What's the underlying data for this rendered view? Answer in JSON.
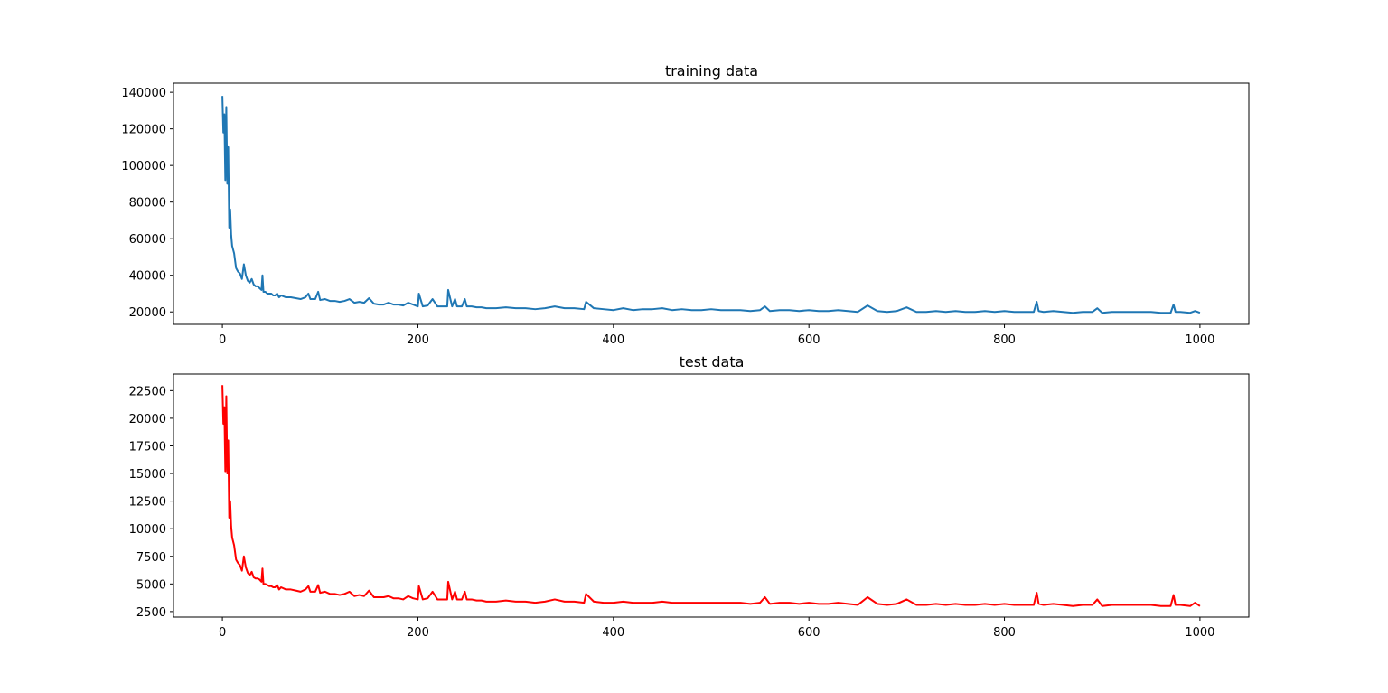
{
  "chart_data": [
    {
      "type": "line",
      "title": "training data",
      "xlabel": "",
      "ylabel": "",
      "xlim": [
        -50,
        1050
      ],
      "ylim": [
        13200,
        145000
      ],
      "xticks": [
        0,
        200,
        400,
        600,
        800,
        1000
      ],
      "yticks": [
        20000,
        40000,
        60000,
        80000,
        100000,
        120000,
        140000
      ],
      "grid": false,
      "color": "#1f77b4",
      "series": [
        {
          "x": [
            0,
            1,
            2,
            3,
            4,
            5,
            6,
            7,
            8,
            9,
            10,
            12,
            14,
            16,
            18,
            20,
            22,
            24,
            26,
            28,
            30,
            32,
            34,
            36,
            38,
            40,
            41,
            42,
            44,
            46,
            48,
            50,
            52,
            54,
            56,
            58,
            60,
            65,
            70,
            75,
            80,
            85,
            88,
            90,
            95,
            98,
            100,
            105,
            110,
            115,
            120,
            125,
            130,
            135,
            140,
            145,
            150,
            155,
            160,
            165,
            170,
            175,
            180,
            185,
            190,
            195,
            200,
            201,
            205,
            210,
            215,
            220,
            225,
            230,
            231,
            235,
            238,
            240,
            245,
            248,
            250,
            255,
            260,
            265,
            270,
            280,
            290,
            300,
            310,
            320,
            330,
            340,
            350,
            360,
            370,
            372,
            380,
            390,
            400,
            410,
            420,
            430,
            440,
            450,
            460,
            470,
            480,
            490,
            500,
            510,
            520,
            530,
            540,
            550,
            555,
            560,
            570,
            580,
            590,
            600,
            610,
            620,
            630,
            640,
            650,
            660,
            670,
            680,
            690,
            700,
            710,
            720,
            730,
            740,
            750,
            760,
            770,
            780,
            790,
            800,
            810,
            820,
            830,
            833,
            835,
            840,
            850,
            860,
            870,
            880,
            890,
            895,
            900,
            910,
            920,
            930,
            940,
            950,
            960,
            970,
            973,
            975,
            980,
            990,
            995,
            1000
          ],
          "values": [
            138000,
            118000,
            128000,
            92000,
            132000,
            90000,
            110000,
            66000,
            76000,
            62000,
            56000,
            52000,
            44000,
            42000,
            41000,
            38000,
            46000,
            40000,
            37000,
            36000,
            38000,
            35000,
            34000,
            34000,
            33000,
            32000,
            40000,
            31000,
            31000,
            30000,
            30000,
            30000,
            29000,
            29000,
            30000,
            28000,
            29000,
            28000,
            28000,
            27500,
            27000,
            28000,
            30000,
            27000,
            27000,
            31000,
            26500,
            27000,
            26000,
            26000,
            25500,
            26000,
            27000,
            25000,
            25500,
            25000,
            27500,
            24500,
            24000,
            24000,
            25000,
            24000,
            24000,
            23500,
            25000,
            24000,
            23000,
            30000,
            23000,
            23500,
            27000,
            23000,
            23000,
            23000,
            32000,
            23000,
            27000,
            23000,
            23000,
            27000,
            23000,
            23000,
            22500,
            22500,
            22000,
            22000,
            22500,
            22000,
            22000,
            21500,
            22000,
            23000,
            22000,
            22000,
            21500,
            25500,
            22000,
            21500,
            21000,
            22000,
            21000,
            21500,
            21500,
            22000,
            21000,
            21500,
            21000,
            21000,
            21500,
            21000,
            21000,
            21000,
            20500,
            21000,
            23000,
            20500,
            21000,
            21000,
            20500,
            21000,
            20500,
            20500,
            21000,
            20500,
            20000,
            23500,
            20500,
            20000,
            20500,
            22500,
            20000,
            20000,
            20500,
            20000,
            20500,
            20000,
            20000,
            20500,
            20000,
            20500,
            20000,
            20000,
            20000,
            25500,
            20500,
            20000,
            20500,
            20000,
            19500,
            20000,
            20000,
            22000,
            19500,
            20000,
            20000,
            20000,
            20000,
            20000,
            19500,
            19500,
            24000,
            20000,
            20000,
            19500,
            20500,
            19500
          ]
        }
      ]
    },
    {
      "type": "line",
      "title": "test data",
      "xlabel": "",
      "ylabel": "",
      "xlim": [
        -50,
        1050
      ],
      "ylim": [
        2000,
        24000
      ],
      "xticks": [
        0,
        200,
        400,
        600,
        800,
        1000
      ],
      "yticks": [
        2500,
        5000,
        7500,
        10000,
        12500,
        15000,
        17500,
        20000,
        22500
      ],
      "grid": false,
      "color": "#ff0000",
      "series": [
        {
          "x": [
            0,
            1,
            2,
            3,
            4,
            5,
            6,
            7,
            8,
            9,
            10,
            12,
            14,
            16,
            18,
            20,
            22,
            24,
            26,
            28,
            30,
            32,
            34,
            36,
            38,
            40,
            41,
            42,
            44,
            46,
            48,
            50,
            52,
            54,
            56,
            58,
            60,
            65,
            70,
            75,
            80,
            85,
            88,
            90,
            95,
            98,
            100,
            105,
            110,
            115,
            120,
            125,
            130,
            135,
            140,
            145,
            150,
            155,
            160,
            165,
            170,
            175,
            180,
            185,
            190,
            195,
            200,
            201,
            205,
            210,
            215,
            220,
            225,
            230,
            231,
            235,
            238,
            240,
            245,
            248,
            250,
            255,
            260,
            265,
            270,
            280,
            290,
            300,
            310,
            320,
            330,
            340,
            350,
            360,
            370,
            372,
            380,
            390,
            400,
            410,
            420,
            430,
            440,
            450,
            460,
            470,
            480,
            490,
            500,
            510,
            520,
            530,
            540,
            550,
            555,
            560,
            570,
            580,
            590,
            600,
            610,
            620,
            630,
            640,
            650,
            660,
            670,
            680,
            690,
            700,
            710,
            720,
            730,
            740,
            750,
            760,
            770,
            780,
            790,
            800,
            810,
            820,
            830,
            833,
            835,
            840,
            850,
            860,
            870,
            880,
            890,
            895,
            900,
            910,
            920,
            930,
            940,
            950,
            960,
            970,
            973,
            975,
            980,
            990,
            995,
            1000
          ],
          "values": [
            23000,
            19500,
            21000,
            15200,
            22000,
            15000,
            18000,
            11000,
            12500,
            10200,
            9200,
            8500,
            7200,
            6900,
            6700,
            6200,
            7500,
            6500,
            6000,
            5800,
            6100,
            5600,
            5500,
            5500,
            5400,
            5200,
            6400,
            5000,
            5000,
            4900,
            4800,
            4800,
            4700,
            4700,
            4900,
            4500,
            4700,
            4500,
            4500,
            4400,
            4300,
            4500,
            4800,
            4300,
            4300,
            4900,
            4200,
            4300,
            4100,
            4100,
            4000,
            4100,
            4300,
            3900,
            4000,
            3900,
            4400,
            3800,
            3800,
            3800,
            3900,
            3700,
            3700,
            3600,
            3900,
            3700,
            3600,
            4800,
            3600,
            3700,
            4300,
            3600,
            3600,
            3600,
            5200,
            3600,
            4300,
            3600,
            3600,
            4300,
            3600,
            3600,
            3500,
            3500,
            3400,
            3400,
            3500,
            3400,
            3400,
            3300,
            3400,
            3600,
            3400,
            3400,
            3300,
            4100,
            3400,
            3300,
            3300,
            3400,
            3300,
            3300,
            3300,
            3400,
            3300,
            3300,
            3300,
            3300,
            3300,
            3300,
            3300,
            3300,
            3200,
            3300,
            3800,
            3200,
            3300,
            3300,
            3200,
            3300,
            3200,
            3200,
            3300,
            3200,
            3100,
            3800,
            3200,
            3100,
            3200,
            3600,
            3100,
            3100,
            3200,
            3100,
            3200,
            3100,
            3100,
            3200,
            3100,
            3200,
            3100,
            3100,
            3100,
            4200,
            3200,
            3100,
            3200,
            3100,
            3000,
            3100,
            3100,
            3600,
            3000,
            3100,
            3100,
            3100,
            3100,
            3100,
            3000,
            3000,
            4000,
            3100,
            3100,
            3000,
            3300,
            3000
          ]
        }
      ]
    }
  ]
}
